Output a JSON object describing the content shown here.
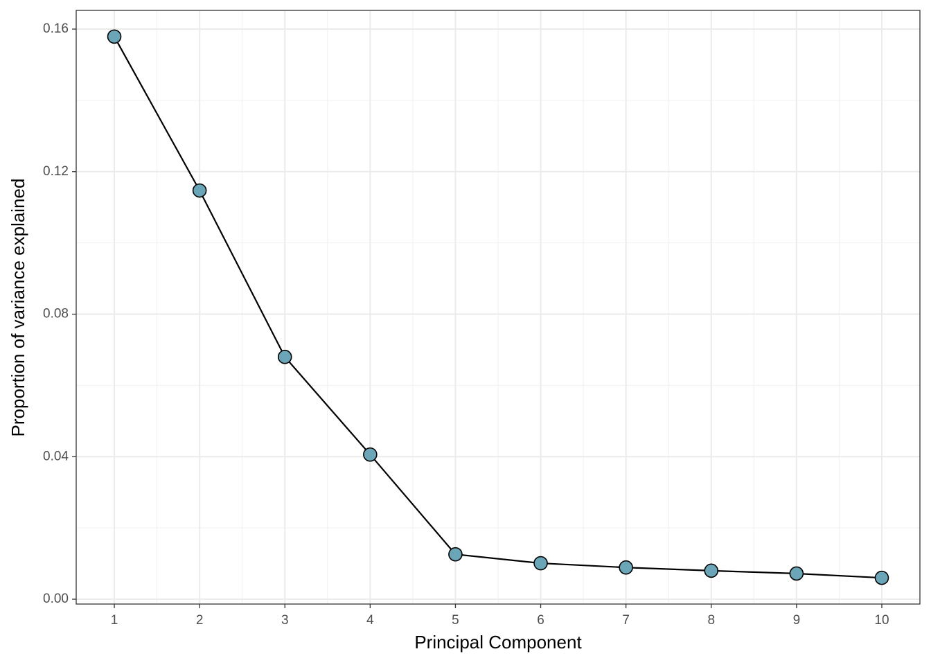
{
  "chart_data": {
    "type": "line",
    "x_label": "Principal Component",
    "y_label": "Proportion of variance explained",
    "x": [
      1,
      2,
      3,
      4,
      5,
      6,
      7,
      8,
      9,
      10
    ],
    "values": [
      0.1579,
      0.1147,
      0.068,
      0.0406,
      0.0126,
      0.0101,
      0.0089,
      0.008,
      0.0072,
      0.006
    ],
    "color": "#000000",
    "marker_color": "#6BA6B8",
    "xlim": [
      0.553,
      10.447
    ],
    "ylim": [
      -0.00136,
      0.16525
    ],
    "xticks": [
      1,
      2,
      3,
      4,
      5,
      6,
      7,
      8,
      9,
      10
    ],
    "yticks": [
      {
        "value": 0,
        "label": "0.00"
      },
      0.04,
      0.08,
      0.12,
      0.16
    ],
    "grid": true,
    "minor_grid": true
  }
}
